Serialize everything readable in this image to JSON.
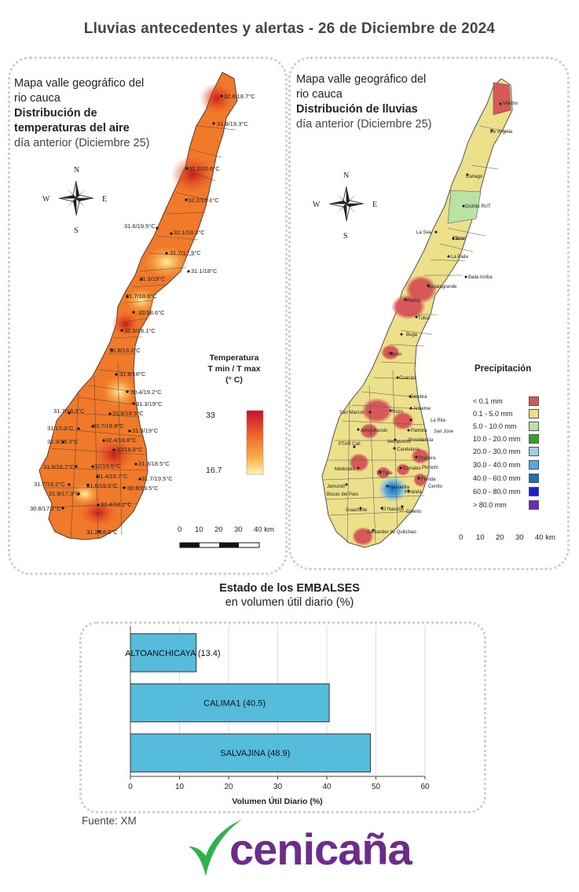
{
  "title": "Lluvias antecedentes y alertas - 26 de Diciembre de 2024",
  "left_panel": {
    "title_lines": [
      "Mapa valle geográfico del",
      "rio cauca"
    ],
    "title_bold_lines": [
      "Distribución de",
      "temperaturas del aire"
    ],
    "subtitle": "día anterior (Diciembre 25)",
    "legend_title": [
      "Temperatura",
      "T min / T max",
      "(° C)"
    ],
    "legend_max": "33",
    "legend_min": "16.7",
    "colors": {
      "hot": "#d62020",
      "warm": "#f07a2a",
      "mild": "#f9b04a",
      "cool": "#fff6a8"
    },
    "station_labels": [
      "32.8/18.7°C",
      "31.8/19.3°C",
      "32.2/20.6°C",
      "32.2/19.1°C",
      "31.6/19.5°C",
      "32.1/18.3°C",
      "31.7/17.9°C",
      "31.1/18°C",
      "31.3/19°C",
      "31.7/18.6°C",
      "32/18.6°C",
      "32.3/18.1°C",
      "30.8/19.2°C",
      "31.6/18°C",
      "30.4/19.2°C",
      "31.3/19°C",
      "31.7/18.3°C",
      "31.8/18.5°C",
      "30.7/18.8°C",
      "31.3/19°C",
      "31/17.3°C",
      "32.4/18.8°C",
      "32.3/18.3°C",
      "33/18.8°C",
      "31.8/18.5°C",
      "31.9/16.7°C",
      "32/19.5°C",
      "31.7/19.5°C",
      "31.4/16.7°C",
      "31.7/18.2°C",
      "31.6/19.5°C",
      "32.8/19.5°C",
      "31.9/17.3°C",
      "30.8/17.2°C",
      "32.4/18.2°C",
      "31.2/18.6°C"
    ]
  },
  "right_panel": {
    "title_lines": [
      "Mapa valle geográfico del",
      "rio cauca"
    ],
    "title_bold": "Distribución de lluvias",
    "subtitle": "día anterior (Diciembre 25)",
    "legend_title": "Precipitación",
    "legend": [
      {
        "label": "< 0.1 mm",
        "color": "#d85858"
      },
      {
        "label": "0.1 - 5.0 mm",
        "color": "#ece08a"
      },
      {
        "label": "5.0 - 10.0 mm",
        "color": "#b9e3a6"
      },
      {
        "label": "10.0 - 20.0 mm",
        "color": "#33a02c"
      },
      {
        "label": "20.0 - 30.0 mm",
        "color": "#a6cee3"
      },
      {
        "label": "30.0 - 40.0 mm",
        "color": "#55a9e0"
      },
      {
        "label": "40.0 - 60.0 mm",
        "color": "#1f6fb4"
      },
      {
        "label": "60.0 - 80.0 mm",
        "color": "#1a1ae0"
      },
      {
        "label": "> 80.0 mm",
        "color": "#6a2ab8"
      }
    ],
    "place_labels": [
      "Viterbo",
      "La Virginia",
      "Cartago",
      "Distrito RUT",
      "La Sea",
      "Toro",
      "La Paila",
      "Zarzal",
      "Baila Arriba",
      "Bugalagrande",
      "Riofrio",
      "Tulua",
      "Yotoco",
      "Guacari",
      "Ginebra",
      "Amaime",
      "San Marcos",
      "Rozo",
      "La Rita",
      "Palmira",
      "San Jose",
      "Arroyohondo",
      "Aeropuerto",
      "Candelaria",
      "Pradera",
      "PTAR Cali",
      "Meléndez",
      "El Tiple",
      "Corrales",
      "Florida",
      "Jamundí",
      "Bocas del Palo",
      "El Naranjo",
      "Miranda",
      "Guachinte",
      "Santander de Quilichao",
      "Buga",
      "Manuelita",
      "Providencia",
      "Corinto",
      "Pichichi",
      "Cerrito"
    ]
  },
  "compass": {
    "n": "N",
    "s": "S",
    "e": "E",
    "w": "W"
  },
  "scale": {
    "ticks": [
      "0",
      "10",
      "20",
      "30",
      "40 km"
    ]
  },
  "embalses": {
    "title": "Estado de los EMBALSES",
    "subtitle": "en volumen útil diario (%)"
  },
  "chart_data": {
    "type": "bar",
    "orientation": "horizontal",
    "categories": [
      "ALTOANCHICAYA",
      "CALIMA1",
      "SALVAJINA"
    ],
    "bar_labels": [
      "ALTOANCHICAYA (13.4)",
      "CALIMA1 (40.5)",
      "SALVAJINA (48.9)"
    ],
    "values": [
      13.4,
      40.5,
      48.9
    ],
    "xlabel": "Volumen Útil Diario (%)",
    "xlim": [
      0,
      60
    ],
    "xticks": [
      "0",
      "10",
      "20",
      "30",
      "40",
      "50",
      "60"
    ],
    "grid": true,
    "bar_color": "#56bcdc"
  },
  "source": "Fuente: XM",
  "logo_text": "cenicaña"
}
